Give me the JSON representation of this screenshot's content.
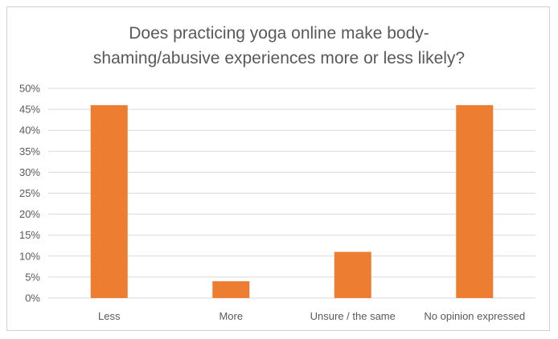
{
  "chart_data": {
    "type": "bar",
    "title_lines": [
      "Does practicing yoga online make body-",
      "shaming/abusive experiences more or less likely?"
    ],
    "xlabel": "",
    "ylabel": "",
    "categories": [
      "Less",
      "More",
      "Unsure / the same",
      "No opinion expressed"
    ],
    "values": [
      46,
      4,
      11,
      46
    ],
    "ylim": [
      0,
      50
    ],
    "y_ticks": [
      0,
      5,
      10,
      15,
      20,
      25,
      30,
      35,
      40,
      45,
      50
    ],
    "y_tick_labels": [
      "0%",
      "5%",
      "10%",
      "15%",
      "20%",
      "25%",
      "30%",
      "35%",
      "40%",
      "45%",
      "50%"
    ],
    "grid": true,
    "legend": "none",
    "bar_color": "#ED7D31",
    "grid_color": "#D9D9D9"
  }
}
